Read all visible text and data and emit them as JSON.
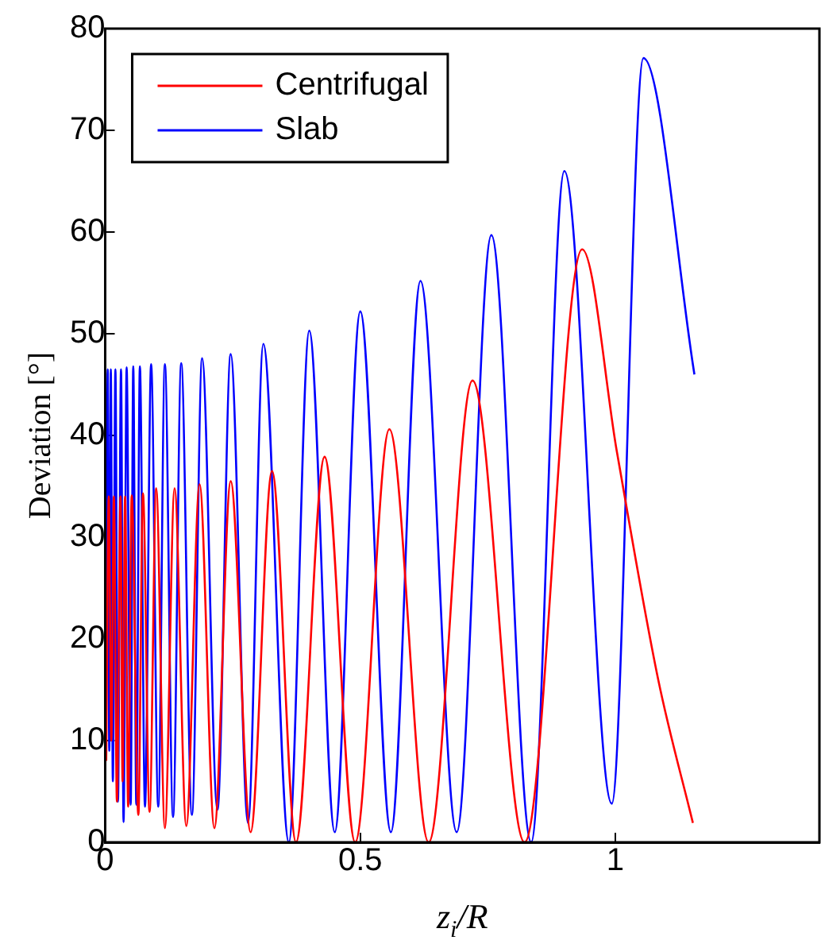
{
  "chart_data": {
    "type": "line",
    "xlabel": "z$_{i}$/R",
    "ylabel": "Deviation [°]",
    "xlim": [
      0,
      1.4
    ],
    "xticks": [
      0,
      0.5,
      1
    ],
    "ylim": [
      0,
      80
    ],
    "yticks": [
      0,
      10,
      20,
      30,
      40,
      50,
      60,
      70,
      80
    ],
    "grid": false,
    "legend": "top left",
    "marker": "none",
    "line_style": "solid",
    "series": [
      {
        "name": "Centrifugal",
        "color": "#ff0000",
        "x": [
          0.002,
          0.007,
          0.012,
          0.017,
          0.023,
          0.03,
          0.034,
          0.039,
          0.045,
          0.052,
          0.065,
          0.074,
          0.087,
          0.1,
          0.117,
          0.136,
          0.159,
          0.185,
          0.214,
          0.246,
          0.285,
          0.327,
          0.374,
          0.43,
          0.49,
          0.557,
          0.634,
          0.72,
          0.822,
          0.935,
          1.003,
          1.084,
          1.152
        ],
        "values": [
          8,
          34,
          10,
          34,
          4,
          34,
          6,
          34,
          3.5,
          34.1,
          2.7,
          34.3,
          3,
          34.8,
          1.4,
          34.8,
          1.6,
          35.2,
          1.4,
          35.5,
          1,
          36.5,
          0,
          37.9,
          0,
          40.6,
          0,
          45.4,
          0,
          58.3,
          38.4,
          16,
          1.9
        ]
      },
      {
        "name": "Slab",
        "color": "#0000ff",
        "x": [
          0.002,
          0.005,
          0.008,
          0.011,
          0.015,
          0.02,
          0.025,
          0.031,
          0.036,
          0.042,
          0.05,
          0.055,
          0.061,
          0.068,
          0.078,
          0.09,
          0.104,
          0.117,
          0.133,
          0.149,
          0.17,
          0.19,
          0.22,
          0.246,
          0.28,
          0.31,
          0.36,
          0.4,
          0.45,
          0.5,
          0.56,
          0.618,
          0.689,
          0.757,
          0.835,
          0.9,
          0.993,
          1.055,
          1.155
        ],
        "values": [
          13,
          46.5,
          9,
          46.5,
          6,
          46.5,
          4,
          46.5,
          2,
          46.7,
          3.7,
          46.8,
          3.7,
          46.8,
          3.5,
          47,
          3.5,
          47,
          2.5,
          47.1,
          2.7,
          47.6,
          3.2,
          48,
          1.9,
          49,
          0,
          50.3,
          1,
          52.2,
          1,
          55.2,
          1,
          59.7,
          0,
          66,
          3.8,
          77.1,
          46
        ]
      }
    ]
  }
}
